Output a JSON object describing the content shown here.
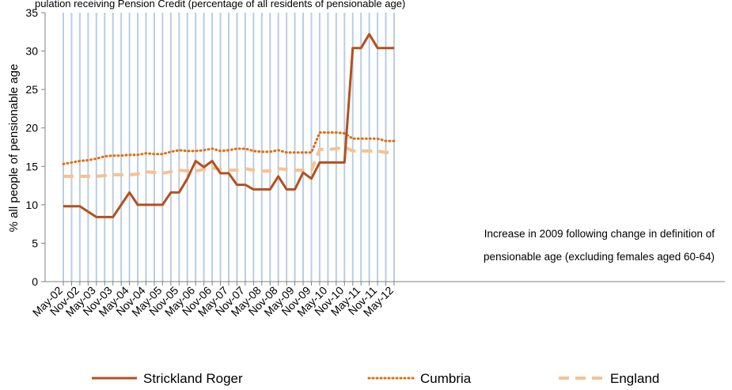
{
  "header_text": "pulation receiving Pension Credit (percentage of all residents of pensionable age)",
  "chart_data": {
    "type": "line",
    "ylabel": "% all people of pensionable age",
    "ylim": [
      0,
      35
    ],
    "y_ticks": [
      0,
      5,
      10,
      15,
      20,
      25,
      30,
      35
    ],
    "grid": "vertical",
    "legend_position": "bottom",
    "x": [
      "May-02",
      "Aug-02",
      "Nov-02",
      "Feb-03",
      "May-03",
      "Aug-03",
      "Nov-03",
      "Feb-04",
      "May-04",
      "Aug-04",
      "Nov-04",
      "Feb-05",
      "May-05",
      "Aug-05",
      "Nov-05",
      "Feb-06",
      "May-06",
      "Aug-06",
      "Nov-06",
      "Feb-07",
      "May-07",
      "Aug-07",
      "Nov-07",
      "Feb-08",
      "May-08",
      "Aug-08",
      "Nov-08",
      "Feb-09",
      "May-09",
      "Aug-09",
      "Nov-09",
      "Feb-10",
      "May-10",
      "Aug-10",
      "Nov-10",
      "Feb-11",
      "May-11",
      "Aug-11",
      "Nov-11",
      "Feb-12",
      "May-12"
    ],
    "x_tick_labels": [
      "May-02",
      "Nov-02",
      "May-03",
      "Nov-03",
      "May-04",
      "Nov-04",
      "May-05",
      "Nov-05",
      "May-06",
      "Nov-06",
      "May-07",
      "Nov-07",
      "May-08",
      "Nov-08",
      "May-09",
      "Nov-09",
      "May-10",
      "Nov-10",
      "May-11",
      "Nov-11",
      "May-12"
    ],
    "series": [
      {
        "name": "Strickland Roger",
        "color": "#b5501c",
        "style": "solid",
        "values": [
          9.8,
          9.8,
          9.8,
          9.1,
          8.4,
          8.4,
          8.4,
          10.0,
          11.6,
          10.0,
          10.0,
          10.0,
          10.0,
          11.6,
          11.6,
          13.4,
          15.7,
          14.9,
          15.7,
          14.1,
          14.1,
          12.6,
          12.6,
          12.0,
          12.0,
          12.0,
          13.7,
          12.0,
          12.0,
          14.2,
          13.4,
          15.5,
          15.5,
          15.5,
          15.5,
          30.4,
          30.4,
          32.2,
          30.4,
          30.4,
          30.4
        ]
      },
      {
        "name": "Cumbria",
        "color": "#e46c0a",
        "style": "dotted",
        "values": [
          15.3,
          15.5,
          15.7,
          15.8,
          16.0,
          16.3,
          16.4,
          16.4,
          16.5,
          16.5,
          16.7,
          16.6,
          16.6,
          16.9,
          17.1,
          17.0,
          17.0,
          17.1,
          17.3,
          17.0,
          17.1,
          17.3,
          17.3,
          17.0,
          16.9,
          16.9,
          17.1,
          16.8,
          16.8,
          16.8,
          16.8,
          19.4,
          19.4,
          19.4,
          19.3,
          18.6,
          18.6,
          18.6,
          18.6,
          18.3,
          18.3
        ]
      },
      {
        "name": "England",
        "color": "#fac090",
        "style": "dashed",
        "values": [
          13.7,
          13.7,
          13.7,
          13.7,
          13.7,
          13.8,
          13.9,
          13.9,
          13.9,
          14.0,
          14.3,
          14.2,
          14.1,
          14.3,
          14.5,
          14.4,
          14.4,
          14.6,
          14.8,
          14.6,
          14.5,
          14.5,
          14.7,
          14.5,
          14.4,
          14.4,
          14.7,
          14.6,
          14.5,
          14.5,
          14.5,
          17.2,
          17.2,
          17.3,
          17.5,
          17.0,
          17.0,
          17.0,
          17.0,
          16.8,
          16.8
        ]
      }
    ],
    "annotation": [
      "Increase in 2009 following change in definition of",
      "pensionable age (excluding females aged 60-64)"
    ]
  }
}
